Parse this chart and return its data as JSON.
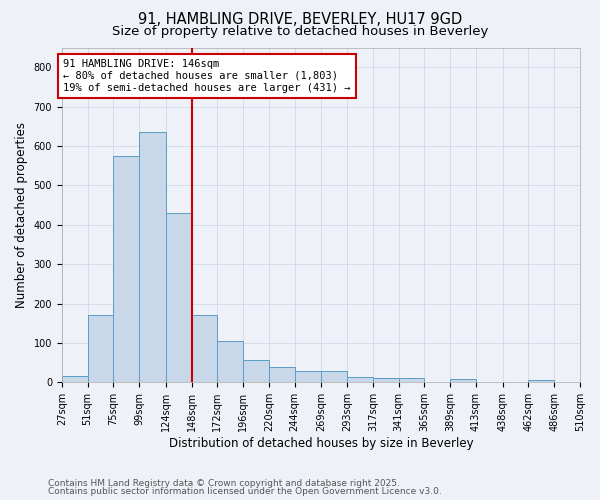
{
  "title1": "91, HAMBLING DRIVE, BEVERLEY, HU17 9GD",
  "title2": "Size of property relative to detached houses in Beverley",
  "xlabel": "Distribution of detached houses by size in Beverley",
  "ylabel": "Number of detached properties",
  "bin_edges": [
    27,
    51,
    75,
    99,
    124,
    148,
    172,
    196,
    220,
    244,
    269,
    293,
    317,
    341,
    365,
    389,
    413,
    438,
    462,
    486,
    510
  ],
  "bar_heights": [
    15,
    170,
    575,
    635,
    430,
    170,
    105,
    57,
    40,
    30,
    30,
    13,
    10,
    10,
    0,
    8,
    0,
    0,
    5,
    0
  ],
  "bar_color": "#c8d8e8",
  "bar_edge_color": "#5a9cc8",
  "vline_x": 148,
  "vline_color": "#cc0000",
  "annotation_text": "91 HAMBLING DRIVE: 146sqm\n← 80% of detached houses are smaller (1,803)\n19% of semi-detached houses are larger (431) →",
  "annotation_box_color": "#ffffff",
  "annotation_box_edge": "#cc0000",
  "ylim": [
    0,
    850
  ],
  "yticks": [
    0,
    100,
    200,
    300,
    400,
    500,
    600,
    700,
    800
  ],
  "grid_color": "#d0d8e8",
  "background_color": "#eef2f8",
  "footer1": "Contains HM Land Registry data © Crown copyright and database right 2025.",
  "footer2": "Contains public sector information licensed under the Open Government Licence v3.0.",
  "title_fontsize": 10.5,
  "subtitle_fontsize": 9.5,
  "axis_label_fontsize": 8.5,
  "tick_fontsize": 7,
  "annotation_fontsize": 7.5,
  "footer_fontsize": 6.5
}
